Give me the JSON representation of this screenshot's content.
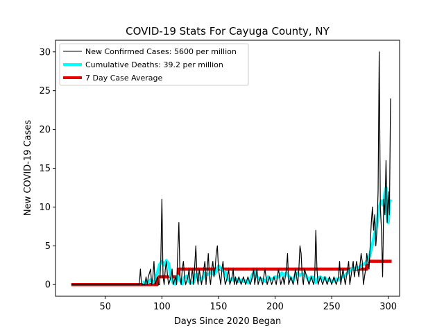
{
  "chart_data": {
    "type": "line",
    "title": "COVID-19 Stats For Cayuga County, NY",
    "xlabel": "Days Since 2020 Began",
    "ylabel": "New COVID-19 Cases",
    "xlim": [
      6,
      310
    ],
    "ylim": [
      -1.5,
      31.5
    ],
    "xticks": [
      50,
      100,
      150,
      200,
      250,
      300
    ],
    "yticks": [
      0,
      5,
      10,
      15,
      20,
      25,
      30
    ],
    "grid": false,
    "legend_position": "top-left",
    "series": [
      {
        "name": "New Confirmed Cases: 5600 per million",
        "color": "#000000",
        "points": [
          [
            20,
            0
          ],
          [
            80,
            0
          ],
          [
            81,
            2
          ],
          [
            82,
            0
          ],
          [
            85,
            0
          ],
          [
            86,
            1
          ],
          [
            87,
            0
          ],
          [
            88,
            1
          ],
          [
            90,
            2
          ],
          [
            91,
            0
          ],
          [
            92,
            1
          ],
          [
            93,
            3
          ],
          [
            94,
            0
          ],
          [
            96,
            1
          ],
          [
            97,
            0
          ],
          [
            98,
            0
          ],
          [
            99,
            3
          ],
          [
            100,
            11
          ],
          [
            101,
            1
          ],
          [
            102,
            0
          ],
          [
            103,
            2
          ],
          [
            104,
            3
          ],
          [
            105,
            1
          ],
          [
            106,
            0
          ],
          [
            108,
            1
          ],
          [
            109,
            2
          ],
          [
            110,
            0
          ],
          [
            112,
            1
          ],
          [
            113,
            0
          ],
          [
            115,
            8
          ],
          [
            116,
            1
          ],
          [
            117,
            0
          ],
          [
            118,
            2
          ],
          [
            119,
            3
          ],
          [
            120,
            1
          ],
          [
            121,
            0
          ],
          [
            123,
            1
          ],
          [
            124,
            2
          ],
          [
            125,
            0
          ],
          [
            126,
            1
          ],
          [
            127,
            2
          ],
          [
            128,
            0
          ],
          [
            130,
            5
          ],
          [
            131,
            1
          ],
          [
            132,
            0
          ],
          [
            133,
            2
          ],
          [
            134,
            1
          ],
          [
            135,
            0
          ],
          [
            136,
            1
          ],
          [
            137,
            2
          ],
          [
            138,
            3
          ],
          [
            139,
            0
          ],
          [
            140,
            2
          ],
          [
            141,
            4
          ],
          [
            142,
            1
          ],
          [
            143,
            0
          ],
          [
            144,
            2
          ],
          [
            145,
            3
          ],
          [
            146,
            1
          ],
          [
            147,
            2
          ],
          [
            148,
            4
          ],
          [
            149,
            5
          ],
          [
            150,
            2
          ],
          [
            151,
            1
          ],
          [
            152,
            0
          ],
          [
            153,
            2
          ],
          [
            154,
            3
          ],
          [
            155,
            1
          ],
          [
            156,
            0
          ],
          [
            158,
            1
          ],
          [
            159,
            2
          ],
          [
            160,
            0
          ],
          [
            162,
            1
          ],
          [
            163,
            2
          ],
          [
            164,
            0
          ],
          [
            165,
            1
          ],
          [
            166,
            0
          ],
          [
            168,
            1
          ],
          [
            170,
            0
          ],
          [
            172,
            1
          ],
          [
            174,
            0
          ],
          [
            176,
            1
          ],
          [
            178,
            0
          ],
          [
            180,
            1
          ],
          [
            181,
            2
          ],
          [
            182,
            0
          ],
          [
            183,
            1
          ],
          [
            184,
            2
          ],
          [
            185,
            0
          ],
          [
            187,
            1
          ],
          [
            189,
            0
          ],
          [
            191,
            2
          ],
          [
            193,
            0
          ],
          [
            195,
            1
          ],
          [
            197,
            0
          ],
          [
            199,
            1
          ],
          [
            201,
            0
          ],
          [
            203,
            2
          ],
          [
            205,
            0
          ],
          [
            207,
            1
          ],
          [
            208,
            0
          ],
          [
            210,
            2
          ],
          [
            211,
            4
          ],
          [
            212,
            0
          ],
          [
            214,
            1
          ],
          [
            216,
            0
          ],
          [
            218,
            2
          ],
          [
            219,
            1
          ],
          [
            220,
            0
          ],
          [
            221,
            2
          ],
          [
            222,
            5
          ],
          [
            223,
            4
          ],
          [
            224,
            1
          ],
          [
            225,
            0
          ],
          [
            226,
            2
          ],
          [
            228,
            1
          ],
          [
            230,
            0
          ],
          [
            232,
            1
          ],
          [
            234,
            0
          ],
          [
            235,
            1
          ],
          [
            236,
            7
          ],
          [
            237,
            2
          ],
          [
            238,
            0
          ],
          [
            240,
            1
          ],
          [
            242,
            0
          ],
          [
            244,
            1
          ],
          [
            246,
            0
          ],
          [
            248,
            1
          ],
          [
            250,
            0
          ],
          [
            252,
            1
          ],
          [
            254,
            0
          ],
          [
            256,
            1
          ],
          [
            257,
            3
          ],
          [
            258,
            0
          ],
          [
            260,
            2
          ],
          [
            261,
            1
          ],
          [
            262,
            0
          ],
          [
            264,
            2
          ],
          [
            265,
            3
          ],
          [
            266,
            0
          ],
          [
            268,
            2
          ],
          [
            269,
            3
          ],
          [
            270,
            1
          ],
          [
            272,
            3
          ],
          [
            273,
            2
          ],
          [
            274,
            1
          ],
          [
            276,
            4
          ],
          [
            277,
            3
          ],
          [
            278,
            0
          ],
          [
            279,
            1
          ],
          [
            280,
            2
          ],
          [
            281,
            4
          ],
          [
            282,
            3
          ],
          [
            283,
            2
          ],
          [
            284,
            5
          ],
          [
            285,
            8
          ],
          [
            286,
            10
          ],
          [
            287,
            7
          ],
          [
            288,
            9
          ],
          [
            289,
            5
          ],
          [
            290,
            7
          ],
          [
            291,
            12
          ],
          [
            292,
            30
          ],
          [
            293,
            10
          ],
          [
            294,
            7
          ],
          [
            295,
            1
          ],
          [
            296,
            11
          ],
          [
            297,
            9
          ],
          [
            298,
            16
          ],
          [
            299,
            8
          ],
          [
            300,
            12
          ],
          [
            301,
            9
          ],
          [
            302,
            24
          ]
        ]
      },
      {
        "name": "Cumulative Deaths: 39.2 per million",
        "color": "#00ffff",
        "points": [
          [
            83,
            0.3
          ],
          [
            86,
            0.3
          ],
          [
            88,
            0.3
          ],
          [
            90,
            0.6
          ],
          [
            92,
            0.3
          ],
          [
            94,
            0.5
          ],
          [
            96,
            1.5
          ],
          [
            98,
            2.6
          ],
          [
            100,
            3.0
          ],
          [
            102,
            2.5
          ],
          [
            104,
            3.1
          ],
          [
            106,
            2.7
          ],
          [
            108,
            1.0
          ],
          [
            110,
            0.2
          ],
          [
            112,
            0.1
          ],
          [
            114,
            1.1
          ],
          [
            116,
            0.6
          ],
          [
            118,
            0.1
          ],
          [
            120,
            0.9
          ],
          [
            122,
            1.1
          ],
          [
            124,
            0.4
          ],
          [
            126,
            0.2
          ],
          [
            128,
            0.3
          ],
          [
            130,
            1.3
          ],
          [
            132,
            1.3
          ],
          [
            134,
            0.6
          ],
          [
            136,
            0.8
          ],
          [
            138,
            1.5
          ],
          [
            140,
            1.3
          ],
          [
            142,
            1.4
          ],
          [
            144,
            1.6
          ],
          [
            146,
            1.3
          ],
          [
            148,
            1.7
          ],
          [
            150,
            2.4
          ],
          [
            152,
            2.1
          ],
          [
            154,
            1.8
          ],
          [
            156,
            1.6
          ],
          [
            158,
            0.7
          ],
          [
            160,
            0.5
          ],
          [
            162,
            0.8
          ],
          [
            164,
            0.5
          ],
          [
            166,
            0.7
          ],
          [
            168,
            0.4
          ],
          [
            170,
            0.6
          ],
          [
            172,
            0.4
          ],
          [
            174,
            0.5
          ],
          [
            176,
            0.3
          ],
          [
            178,
            0.4
          ],
          [
            180,
            1.3
          ],
          [
            182,
            1.6
          ],
          [
            184,
            1.0
          ],
          [
            186,
            0.7
          ],
          [
            188,
            0.7
          ],
          [
            190,
            0.6
          ],
          [
            192,
            0.4
          ],
          [
            194,
            1.0
          ],
          [
            196,
            0.7
          ],
          [
            198,
            0.7
          ],
          [
            200,
            1.0
          ],
          [
            202,
            0.9
          ],
          [
            204,
            1.1
          ],
          [
            206,
            1.5
          ],
          [
            208,
            1.2
          ],
          [
            210,
            1.5
          ],
          [
            212,
            1.1
          ],
          [
            214,
            0.8
          ],
          [
            216,
            0.5
          ],
          [
            218,
            1.3
          ],
          [
            220,
            1.5
          ],
          [
            222,
            1.2
          ],
          [
            224,
            1.4
          ],
          [
            226,
            1.3
          ],
          [
            228,
            1.0
          ],
          [
            230,
            0.5
          ],
          [
            232,
            1.0
          ],
          [
            234,
            0.9
          ],
          [
            236,
            0.3
          ],
          [
            238,
            0.8
          ],
          [
            240,
            1.0
          ],
          [
            242,
            0.7
          ],
          [
            244,
            0.9
          ],
          [
            246,
            0.5
          ],
          [
            248,
            0.7
          ],
          [
            250,
            0.4
          ],
          [
            252,
            0.5
          ],
          [
            254,
            0.7
          ],
          [
            256,
            0.6
          ],
          [
            258,
            0.9
          ],
          [
            260,
            1.0
          ],
          [
            262,
            1.2
          ],
          [
            264,
            1.5
          ],
          [
            266,
            1.8
          ],
          [
            268,
            2.0
          ],
          [
            270,
            2.1
          ],
          [
            272,
            2.1
          ],
          [
            274,
            2.2
          ],
          [
            276,
            2.4
          ],
          [
            278,
            2.6
          ],
          [
            280,
            2.8
          ],
          [
            282,
            3.0
          ],
          [
            284,
            4.0
          ],
          [
            286,
            5.2
          ],
          [
            288,
            6.5
          ],
          [
            290,
            7.8
          ],
          [
            292,
            10.0
          ],
          [
            294,
            10.8
          ],
          [
            296,
            10.2
          ],
          [
            297,
            11.8
          ],
          [
            298,
            12.5
          ],
          [
            299,
            9.0
          ],
          [
            300,
            8.0
          ],
          [
            301,
            10.5
          ],
          [
            302,
            11.0
          ]
        ]
      },
      {
        "name": "7 Day Case Average",
        "color": "#e60000",
        "points": [
          [
            20,
            0
          ],
          [
            96,
            0
          ],
          [
            96,
            1
          ],
          [
            115,
            1
          ],
          [
            115,
            2
          ],
          [
            281,
            2
          ],
          [
            281,
            3
          ],
          [
            303,
            3
          ]
        ]
      }
    ]
  }
}
